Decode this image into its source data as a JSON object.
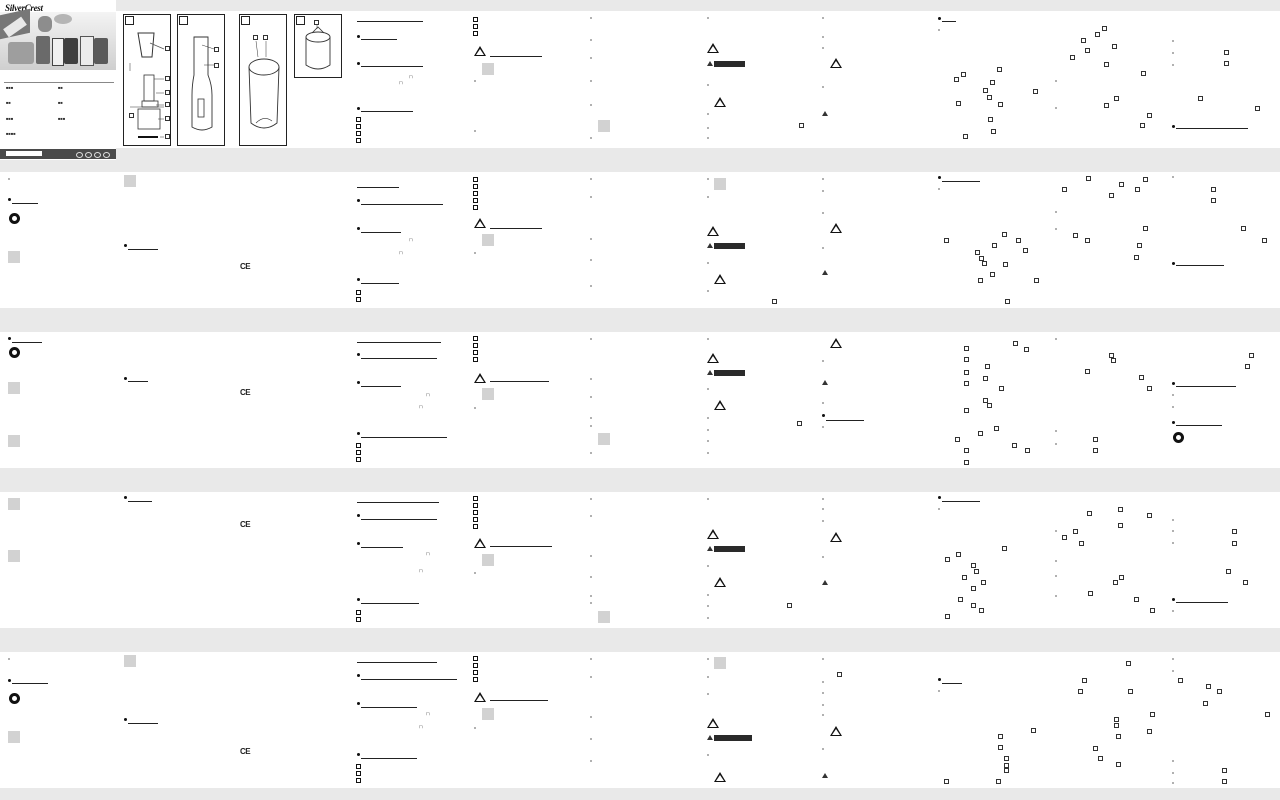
{
  "document": {
    "brand": "SilverCrest",
    "pages_visible": 5,
    "columns_per_page": 11
  }
}
